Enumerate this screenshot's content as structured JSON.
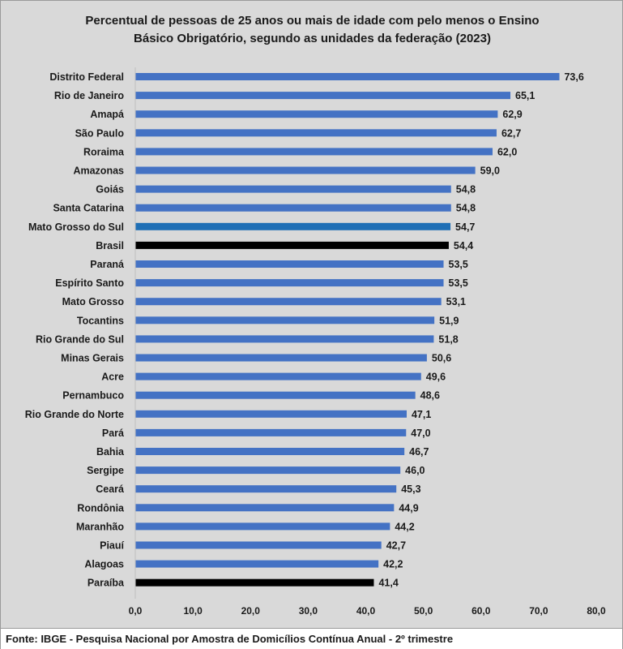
{
  "chart_data": {
    "type": "bar",
    "orientation": "horizontal",
    "title_lines": [
      "Percentual de pessoas de 25 anos ou mais de idade com pelo menos o Ensino",
      "Básico Obrigatório, segundo as unidades da federação (2023)"
    ],
    "categories": [
      "Distrito Federal",
      "Rio de Janeiro",
      "Amapá",
      "São Paulo",
      "Roraima",
      "Amazonas",
      "Goiás",
      "Santa Catarina",
      "Mato Grosso do Sul",
      "Brasil",
      "Paraná",
      "Espírito Santo",
      "Mato Grosso",
      "Tocantins",
      "Rio Grande do Sul",
      "Minas Gerais",
      "Acre",
      "Pernambuco",
      "Rio Grande do Norte",
      "Pará",
      "Bahia",
      "Sergipe",
      "Ceará",
      "Rondônia",
      "Maranhão",
      "Piauí",
      "Alagoas",
      "Paraíba"
    ],
    "values": [
      73.6,
      65.1,
      62.9,
      62.7,
      62.0,
      59.0,
      54.8,
      54.8,
      54.7,
      54.4,
      53.5,
      53.5,
      53.1,
      51.9,
      51.8,
      50.6,
      49.6,
      48.6,
      47.1,
      47.0,
      46.7,
      46.0,
      45.3,
      44.9,
      44.2,
      42.7,
      42.2,
      41.4
    ],
    "value_labels": [
      "73,6",
      "65,1",
      "62,9",
      "62,7",
      "62,0",
      "59,0",
      "54,8",
      "54,8",
      "54,7",
      "54,4",
      "53,5",
      "53,5",
      "53,1",
      "51,9",
      "51,8",
      "50,6",
      "49,6",
      "48,6",
      "47,1",
      "47,0",
      "46,7",
      "46,0",
      "45,3",
      "44,9",
      "44,2",
      "42,7",
      "42,2",
      "41,4"
    ],
    "bar_colors": [
      "#4472c4",
      "#4472c4",
      "#4472c4",
      "#4472c4",
      "#4472c4",
      "#4472c4",
      "#4472c4",
      "#4472c4",
      "#1f6fb5",
      "#000000",
      "#4472c4",
      "#4472c4",
      "#4472c4",
      "#4472c4",
      "#4472c4",
      "#4472c4",
      "#4472c4",
      "#4472c4",
      "#4472c4",
      "#4472c4",
      "#4472c4",
      "#4472c4",
      "#4472c4",
      "#4472c4",
      "#4472c4",
      "#4472c4",
      "#4472c4",
      "#000000"
    ],
    "xlim": [
      0,
      80
    ],
    "x_ticks": [
      0,
      10,
      20,
      30,
      40,
      50,
      60,
      70,
      80
    ],
    "x_tick_labels": [
      "0,0",
      "10,0",
      "20,0",
      "30,0",
      "40,0",
      "50,0",
      "60,0",
      "70,0",
      "80,0"
    ],
    "grid": false,
    "legend": "none"
  },
  "source": "Fonte: IBGE - Pesquisa Nacional por Amostra de Domicílios Contínua Anual - 2º trimestre"
}
